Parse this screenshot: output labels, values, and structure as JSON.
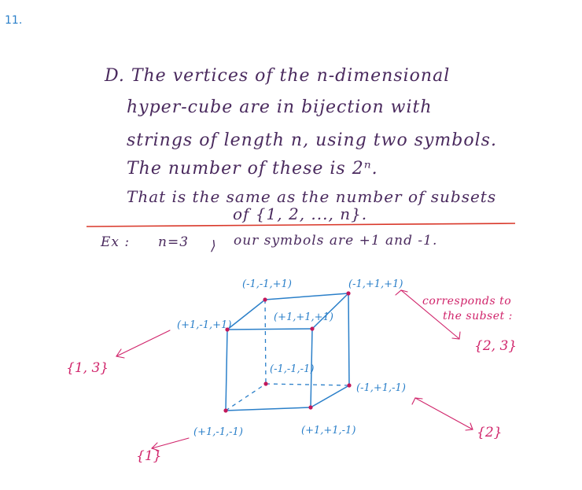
{
  "page_number": "11.",
  "text_lines": [
    "D. The  vertices  of  the  n-dimensional",
    "hyper-cube  are  in  bijection  with",
    "strings  of  length  n,  using  two  symbols.",
    "The  number  of  these  is  2ⁿ.",
    "That  is  the  same  as  the number of  subsets",
    "of  {1, 2, ..., n}."
  ],
  "example": {
    "label": "Ex :",
    "n_value": "n=3",
    "separator": ",",
    "comma_below": "⟩",
    "text": "our   symbols  are  +1  and  -1."
  },
  "vertex_labels": {
    "back_top_left": "(-1,-1,+1)",
    "back_top_right": "(-1,+1,+1)",
    "front_top_left": "(+1,-1,+1)",
    "front_top_right": "(+1,+1,+1)",
    "back_bottom_left": "(-1,-1,-1)",
    "back_bottom_right": "(-1,+1,-1)",
    "front_bottom_left": "(+1,-1,-1)",
    "front_bottom_right": "(+1,+1,-1)"
  },
  "annotations": {
    "corresponds_line1": "corresponds to",
    "corresponds_line2": "the  subset :",
    "subset_23": "{2, 3}",
    "subset_13": "{1, 3}",
    "subset_1": "{1}",
    "subset_2": "{2}"
  },
  "colors": {
    "text": "#4a2a5e",
    "cube": "#2a7fc9",
    "vertex": "#c2185b",
    "arrows": "#d0236a",
    "rule": "#d9382a"
  }
}
